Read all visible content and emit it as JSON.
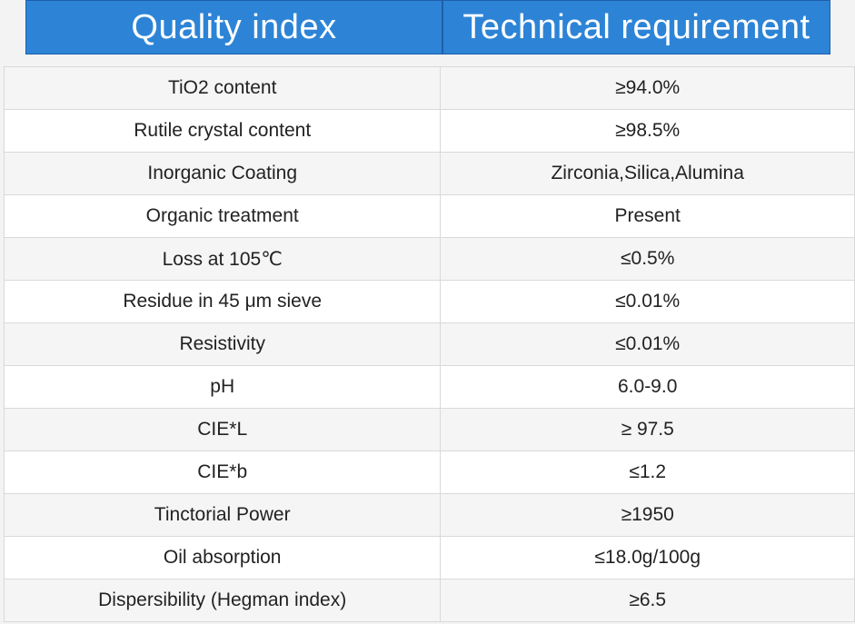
{
  "header": {
    "col1": "Quality index",
    "col2": "Technical requirement"
  },
  "rows": [
    {
      "index": "TiO2 content",
      "requirement": "≥94.0%"
    },
    {
      "index": "Rutile crystal content",
      "requirement": "≥98.5%"
    },
    {
      "index": "Inorganic Coating",
      "requirement": "Zirconia,Silica,Alumina"
    },
    {
      "index": "Organic treatment",
      "requirement": "Present"
    },
    {
      "index": "Loss at 105℃",
      "requirement": "≤0.5%"
    },
    {
      "index": "Residue in 45 μm sieve",
      "requirement": "≤0.01%"
    },
    {
      "index": "Resistivity",
      "requirement": "≤0.01%"
    },
    {
      "index": "pH",
      "requirement": "6.0-9.0"
    },
    {
      "index": "CIE*L",
      "requirement": "≥ 97.5"
    },
    {
      "index": "CIE*b",
      "requirement": "≤1.2"
    },
    {
      "index": "Tinctorial Power",
      "requirement": "≥1950"
    },
    {
      "index": "Oil absorption",
      "requirement": "≤18.0g/100g"
    },
    {
      "index": "Dispersibility (Hegman index)",
      "requirement": "≥6.5"
    }
  ],
  "colors": {
    "header_bg": "#2d84d6",
    "header_text": "#ffffff",
    "row_alt": "#f5f5f5",
    "border": "#d9d9d9"
  }
}
